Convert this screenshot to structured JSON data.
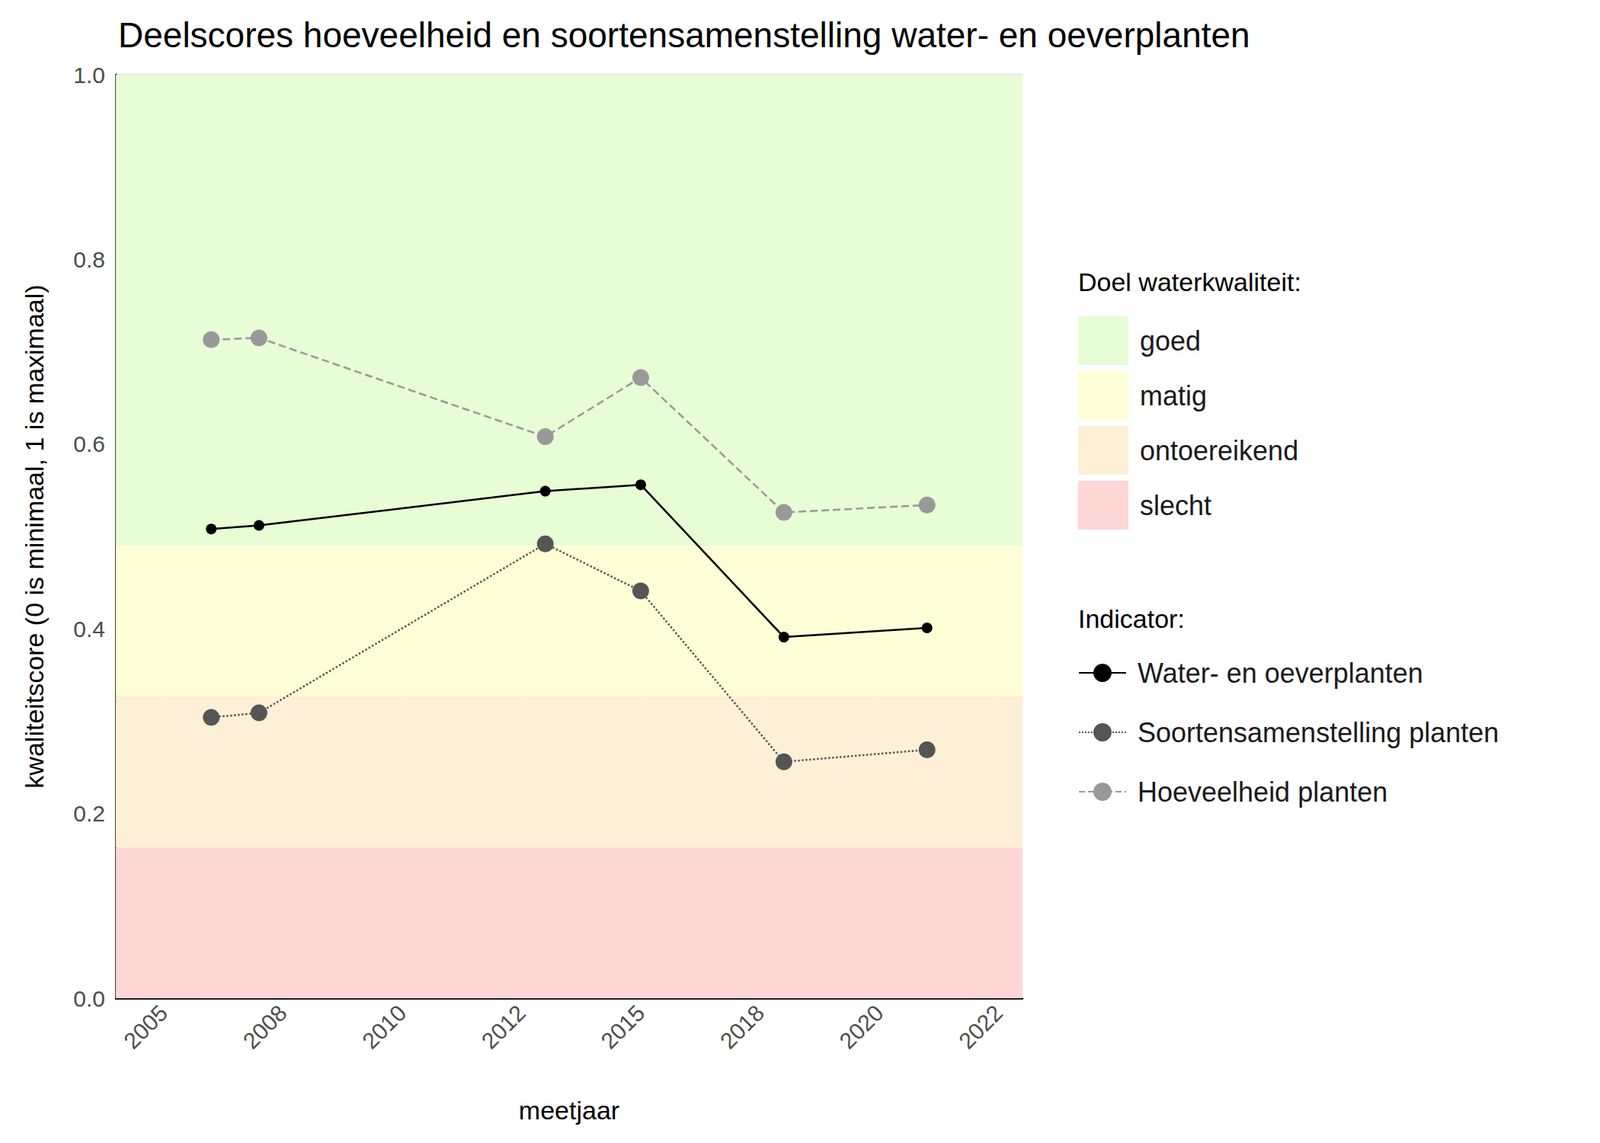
{
  "chart_data": {
    "type": "line",
    "title": "Deelscores hoeveelheid en soortensamenstelling water- en oeverplanten",
    "x_label": "meetjaar",
    "y_label": "kwaliteitscore (0 is minimaal, 1 is maximaal)",
    "x": [
      2006,
      2007,
      2013,
      2015,
      2018,
      2021
    ],
    "series": [
      {
        "name": "Water- en oeverplanten",
        "color": "#000000",
        "marker": "circle",
        "line_style": "solid",
        "values": [
          0.508,
          0.512,
          0.549,
          0.556,
          0.391,
          0.401
        ]
      },
      {
        "name": "Soortensamenstelling planten",
        "color": "#555555",
        "marker": "circle",
        "line_style": "dotted",
        "values": [
          0.304,
          0.309,
          0.492,
          0.441,
          0.256,
          0.269
        ]
      },
      {
        "name": "Hoeveelheid planten",
        "color": "#999999",
        "marker": "circle",
        "line_style": "dashed",
        "values": [
          0.713,
          0.715,
          0.608,
          0.672,
          0.526,
          0.534
        ]
      }
    ],
    "xlim": [
      2004,
      2023
    ],
    "xticks": [
      2005,
      {
        "value": 2007.5,
        "label": "2008"
      },
      2010,
      {
        "value": 2012.5,
        "label": "2012"
      },
      2015,
      {
        "value": 2017.5,
        "label": "2018"
      },
      2020,
      {
        "value": 2022.5,
        "label": "2022"
      }
    ],
    "ylim": [
      0,
      1
    ],
    "yticks": [
      {
        "value": 0,
        "label": "0.0"
      },
      0.2,
      0.4,
      0.6,
      0.8,
      {
        "value": 1,
        "label": "1.0"
      }
    ],
    "grid": true,
    "legend": "right",
    "legend_title": "Indicator:",
    "bands": {
      "title": "Doel waterkwaliteit:",
      "items": [
        {
          "name": "goed",
          "from": 0.49,
          "to": 1,
          "color": "#e6fdd6"
        },
        {
          "name": "matig",
          "from": 0.327,
          "to": 0.49,
          "color": "#fdfed6"
        },
        {
          "name": "ontoereikend",
          "from": 0.163,
          "to": 0.327,
          "color": "#fdf0d7"
        },
        {
          "name": "slecht",
          "from": 0,
          "to": 0.163,
          "color": "#fdd6d6"
        }
      ]
    }
  }
}
